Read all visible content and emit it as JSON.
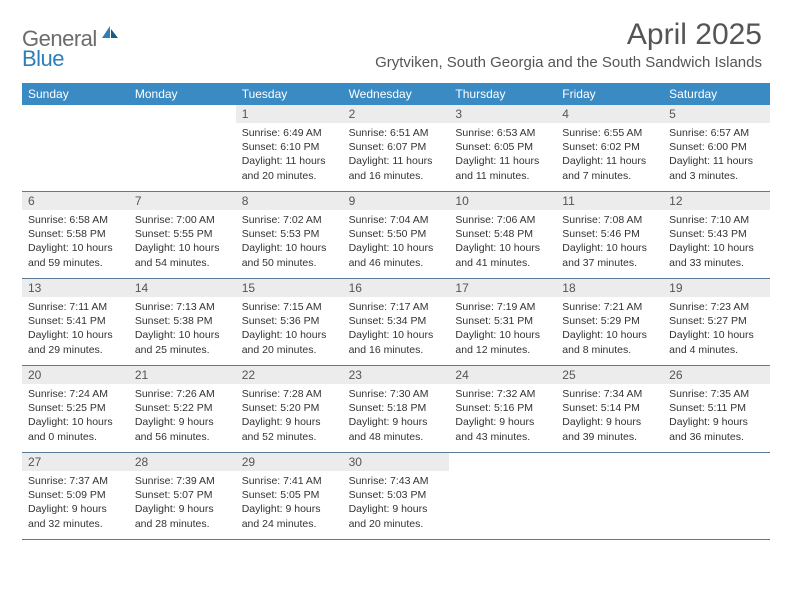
{
  "logo": {
    "text1": "General",
    "text2": "Blue"
  },
  "title": "April 2025",
  "location": "Grytviken, South Georgia and the South Sandwich Islands",
  "colors": {
    "header_bg": "#3a8ac4",
    "header_text": "#ffffff",
    "daynum_bg": "#ececec",
    "daynum_text": "#555555",
    "rule": "#5a7a95",
    "body_text": "#333333",
    "logo_gray": "#6b6b6b",
    "logo_blue": "#2d7fb8"
  },
  "typography": {
    "title_fontsize": 30,
    "location_fontsize": 15,
    "dayheader_fontsize": 12,
    "daynum_fontsize": 12,
    "content_fontsize": 10.5
  },
  "dayHeaders": [
    "Sunday",
    "Monday",
    "Tuesday",
    "Wednesday",
    "Thursday",
    "Friday",
    "Saturday"
  ],
  "weeks": [
    [
      {
        "n": "",
        "sr": "",
        "ss": "",
        "dl": ""
      },
      {
        "n": "",
        "sr": "",
        "ss": "",
        "dl": ""
      },
      {
        "n": "1",
        "sr": "6:49 AM",
        "ss": "6:10 PM",
        "dl": "11 hours and 20 minutes."
      },
      {
        "n": "2",
        "sr": "6:51 AM",
        "ss": "6:07 PM",
        "dl": "11 hours and 16 minutes."
      },
      {
        "n": "3",
        "sr": "6:53 AM",
        "ss": "6:05 PM",
        "dl": "11 hours and 11 minutes."
      },
      {
        "n": "4",
        "sr": "6:55 AM",
        "ss": "6:02 PM",
        "dl": "11 hours and 7 minutes."
      },
      {
        "n": "5",
        "sr": "6:57 AM",
        "ss": "6:00 PM",
        "dl": "11 hours and 3 minutes."
      }
    ],
    [
      {
        "n": "6",
        "sr": "6:58 AM",
        "ss": "5:58 PM",
        "dl": "10 hours and 59 minutes."
      },
      {
        "n": "7",
        "sr": "7:00 AM",
        "ss": "5:55 PM",
        "dl": "10 hours and 54 minutes."
      },
      {
        "n": "8",
        "sr": "7:02 AM",
        "ss": "5:53 PM",
        "dl": "10 hours and 50 minutes."
      },
      {
        "n": "9",
        "sr": "7:04 AM",
        "ss": "5:50 PM",
        "dl": "10 hours and 46 minutes."
      },
      {
        "n": "10",
        "sr": "7:06 AM",
        "ss": "5:48 PM",
        "dl": "10 hours and 41 minutes."
      },
      {
        "n": "11",
        "sr": "7:08 AM",
        "ss": "5:46 PM",
        "dl": "10 hours and 37 minutes."
      },
      {
        "n": "12",
        "sr": "7:10 AM",
        "ss": "5:43 PM",
        "dl": "10 hours and 33 minutes."
      }
    ],
    [
      {
        "n": "13",
        "sr": "7:11 AM",
        "ss": "5:41 PM",
        "dl": "10 hours and 29 minutes."
      },
      {
        "n": "14",
        "sr": "7:13 AM",
        "ss": "5:38 PM",
        "dl": "10 hours and 25 minutes."
      },
      {
        "n": "15",
        "sr": "7:15 AM",
        "ss": "5:36 PM",
        "dl": "10 hours and 20 minutes."
      },
      {
        "n": "16",
        "sr": "7:17 AM",
        "ss": "5:34 PM",
        "dl": "10 hours and 16 minutes."
      },
      {
        "n": "17",
        "sr": "7:19 AM",
        "ss": "5:31 PM",
        "dl": "10 hours and 12 minutes."
      },
      {
        "n": "18",
        "sr": "7:21 AM",
        "ss": "5:29 PM",
        "dl": "10 hours and 8 minutes."
      },
      {
        "n": "19",
        "sr": "7:23 AM",
        "ss": "5:27 PM",
        "dl": "10 hours and 4 minutes."
      }
    ],
    [
      {
        "n": "20",
        "sr": "7:24 AM",
        "ss": "5:25 PM",
        "dl": "10 hours and 0 minutes."
      },
      {
        "n": "21",
        "sr": "7:26 AM",
        "ss": "5:22 PM",
        "dl": "9 hours and 56 minutes."
      },
      {
        "n": "22",
        "sr": "7:28 AM",
        "ss": "5:20 PM",
        "dl": "9 hours and 52 minutes."
      },
      {
        "n": "23",
        "sr": "7:30 AM",
        "ss": "5:18 PM",
        "dl": "9 hours and 48 minutes."
      },
      {
        "n": "24",
        "sr": "7:32 AM",
        "ss": "5:16 PM",
        "dl": "9 hours and 43 minutes."
      },
      {
        "n": "25",
        "sr": "7:34 AM",
        "ss": "5:14 PM",
        "dl": "9 hours and 39 minutes."
      },
      {
        "n": "26",
        "sr": "7:35 AM",
        "ss": "5:11 PM",
        "dl": "9 hours and 36 minutes."
      }
    ],
    [
      {
        "n": "27",
        "sr": "7:37 AM",
        "ss": "5:09 PM",
        "dl": "9 hours and 32 minutes."
      },
      {
        "n": "28",
        "sr": "7:39 AM",
        "ss": "5:07 PM",
        "dl": "9 hours and 28 minutes."
      },
      {
        "n": "29",
        "sr": "7:41 AM",
        "ss": "5:05 PM",
        "dl": "9 hours and 24 minutes."
      },
      {
        "n": "30",
        "sr": "7:43 AM",
        "ss": "5:03 PM",
        "dl": "9 hours and 20 minutes."
      },
      {
        "n": "",
        "sr": "",
        "ss": "",
        "dl": ""
      },
      {
        "n": "",
        "sr": "",
        "ss": "",
        "dl": ""
      },
      {
        "n": "",
        "sr": "",
        "ss": "",
        "dl": ""
      }
    ]
  ]
}
